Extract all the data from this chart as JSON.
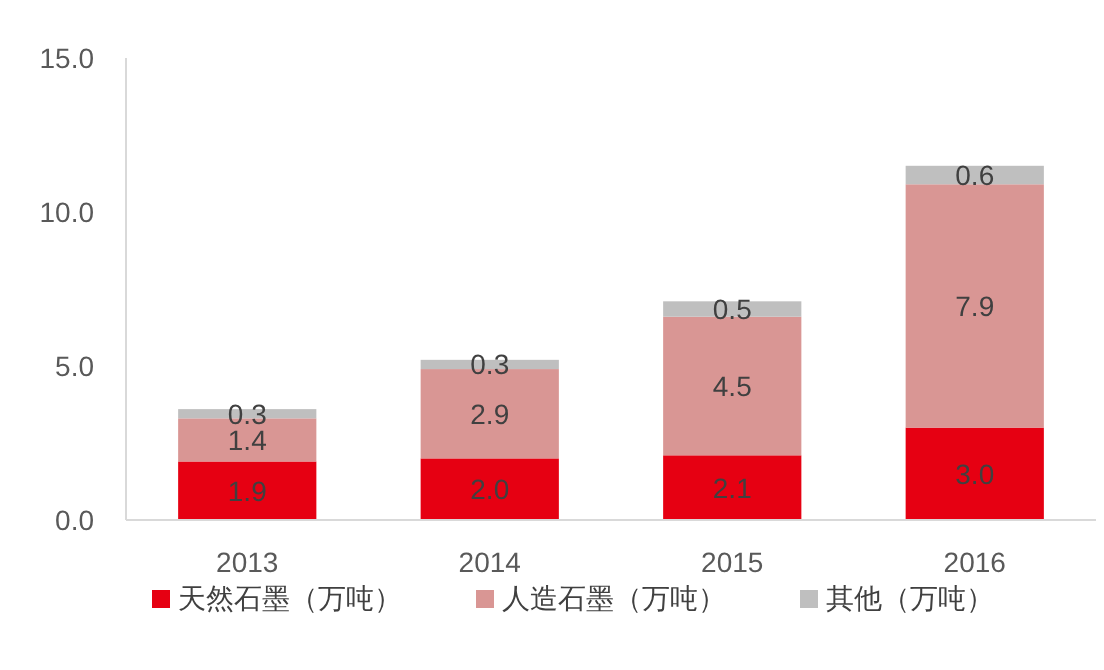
{
  "chart_data": {
    "type": "bar",
    "stacked": true,
    "categories": [
      "2013",
      "2014",
      "2015",
      "2016"
    ],
    "series": [
      {
        "name": "天然石墨（万吨）",
        "color": "#e60012",
        "values": [
          1.9,
          2.0,
          2.1,
          3.0
        ],
        "value_labels": [
          "1.9",
          "2.0",
          "2.1",
          "3.0"
        ]
      },
      {
        "name": "人造石墨（万吨）",
        "color": "#d99694",
        "values": [
          1.4,
          2.9,
          4.5,
          7.9
        ],
        "value_labels": [
          "1.4",
          "2.9",
          "4.5",
          "7.9"
        ]
      },
      {
        "name": "其他（万吨）",
        "color": "#bfbfbf",
        "values": [
          0.3,
          0.3,
          0.5,
          0.6
        ],
        "value_labels": [
          "0.3",
          "0.3",
          "0.5",
          "0.6"
        ]
      }
    ],
    "ylim": [
      0,
      15
    ],
    "yticks": [
      {
        "value": 0,
        "label": "0.0"
      },
      {
        "value": 5,
        "label": "5.0"
      },
      {
        "value": 10,
        "label": "10.0"
      },
      {
        "value": 15,
        "label": "15.0"
      }
    ],
    "legend": "bottom",
    "grid": false
  }
}
